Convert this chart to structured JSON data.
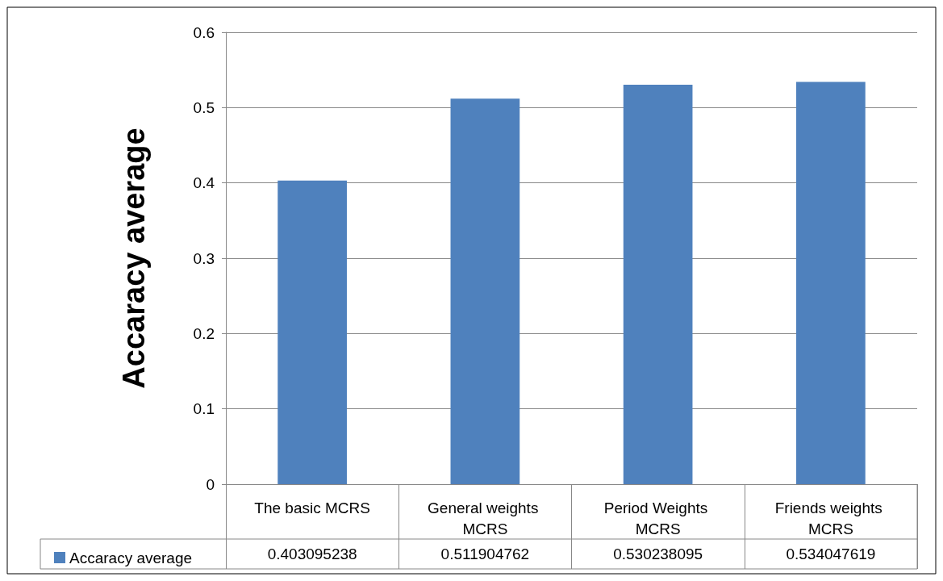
{
  "chart_data": {
    "type": "bar",
    "ylabel": "Accaracy average",
    "categories": [
      "The basic MCRS",
      "General weights MCRS",
      "Period Weights MCRS",
      "Friends weights MCRS"
    ],
    "series": [
      {
        "name": "Accaracy average",
        "color": "#4f81bd",
        "values": [
          0.403095238,
          0.511904762,
          0.530238095,
          0.534047619
        ]
      }
    ],
    "ylim": [
      0,
      0.6
    ],
    "yticks": [
      0,
      0.1,
      0.2,
      0.3,
      0.4,
      0.5,
      0.6
    ],
    "grid": "y",
    "legend": "bottom left",
    "data_labels": true
  }
}
